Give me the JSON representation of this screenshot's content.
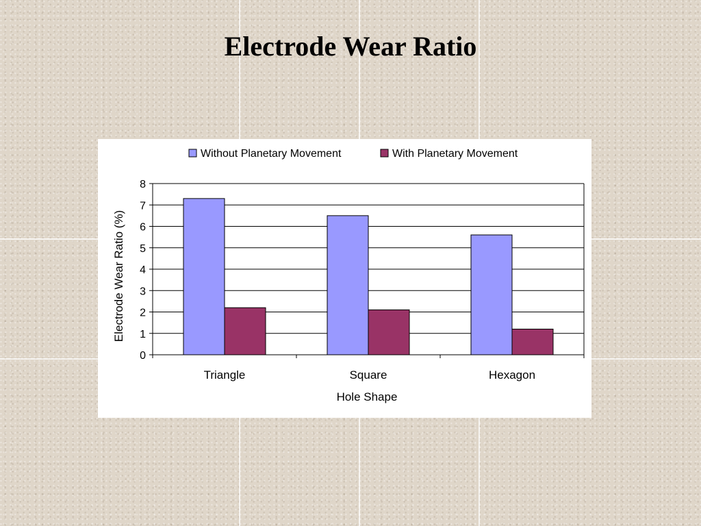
{
  "slide": {
    "title": "Electrode Wear Ratio"
  },
  "chart_data": {
    "type": "bar",
    "title": "",
    "categories": [
      "Triangle",
      "Square",
      "Hexagon"
    ],
    "series": [
      {
        "name": "Without Planetary Movement",
        "values": [
          7.3,
          6.5,
          5.6
        ],
        "color": "#9999ff"
      },
      {
        "name": "With Planetary Movement",
        "values": [
          2.2,
          2.1,
          1.2
        ],
        "color": "#993366"
      }
    ],
    "xlabel": "Hole Shape",
    "ylabel": "Electrode Wear Ratio (%)",
    "ylim": [
      0,
      8
    ],
    "yticks": [
      0,
      1,
      2,
      3,
      4,
      5,
      6,
      7,
      8
    ],
    "grid": true,
    "legend": "top"
  }
}
